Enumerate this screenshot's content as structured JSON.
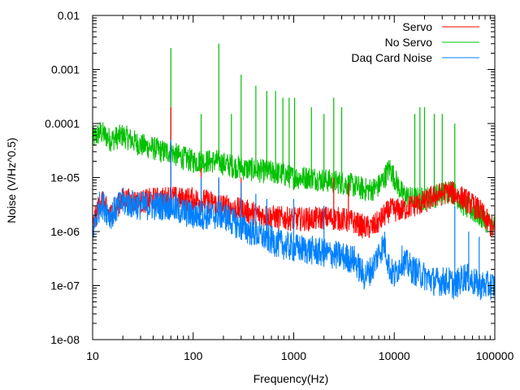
{
  "chart_data": {
    "type": "line",
    "title": "",
    "xlabel": "Frequency(Hz)",
    "ylabel": "Noise (V/Hz^0.5)",
    "xscale": "log",
    "yscale": "log",
    "xlim": [
      10,
      100000
    ],
    "ylim": [
      1e-08,
      0.01
    ],
    "grid": false,
    "legend_position": "top-right",
    "x_tick_labels": [
      "10",
      "100",
      "1000",
      "10000",
      "100000"
    ],
    "x_tick_values": [
      10,
      100,
      1000,
      10000,
      100000
    ],
    "y_tick_labels": [
      "1e-08",
      "1e-07",
      "1e-06",
      "1e-05",
      "0.0001",
      "0.001",
      "0.01"
    ],
    "y_tick_values": [
      1e-08,
      1e-07,
      1e-06,
      1e-05,
      0.0001,
      0.001,
      0.01
    ],
    "series": [
      {
        "name": "No Servo",
        "color": "#00bf00",
        "x": [
          10,
          12,
          15,
          20,
          30,
          40,
          50,
          60,
          70,
          100,
          150,
          180,
          200,
          300,
          500,
          700,
          1000,
          1500,
          2000,
          3000,
          4000,
          5000,
          6000,
          7000,
          8000,
          9000,
          10000,
          12000,
          15000,
          20000,
          25000,
          30000,
          35000,
          40000,
          50000,
          70000,
          100000
        ],
        "y": [
          5e-05,
          7e-05,
          5e-05,
          6e-05,
          4e-05,
          3.5e-05,
          3e-05,
          3e-05,
          2.5e-05,
          2e-05,
          2e-05,
          2e-05,
          1.8e-05,
          1.5e-05,
          1.3e-05,
          1.2e-05,
          1e-05,
          1e-05,
          9e-06,
          8e-06,
          7e-06,
          6e-06,
          6e-06,
          7e-06,
          1e-05,
          1.5e-05,
          1e-05,
          5e-06,
          4e-06,
          4e-06,
          4.5e-06,
          5e-06,
          6e-06,
          5e-06,
          3e-06,
          2e-06,
          1.2e-06
        ],
        "spikes": [
          {
            "x": 60,
            "y": 0.0025
          },
          {
            "x": 120,
            "y": 0.00015
          },
          {
            "x": 180,
            "y": 0.003
          },
          {
            "x": 240,
            "y": 0.00015
          },
          {
            "x": 300,
            "y": 0.0008
          },
          {
            "x": 420,
            "y": 0.0005
          },
          {
            "x": 540,
            "y": 0.0004
          },
          {
            "x": 660,
            "y": 0.0004
          },
          {
            "x": 780,
            "y": 0.0003
          },
          {
            "x": 900,
            "y": 0.0003
          },
          {
            "x": 1020,
            "y": 0.0003
          },
          {
            "x": 1500,
            "y": 0.0002
          },
          {
            "x": 2000,
            "y": 0.00015
          },
          {
            "x": 2500,
            "y": 0.0003
          },
          {
            "x": 3000,
            "y": 0.0002
          },
          {
            "x": 16000,
            "y": 0.00015
          },
          {
            "x": 18000,
            "y": 0.0002
          },
          {
            "x": 20000,
            "y": 0.0002
          },
          {
            "x": 25000,
            "y": 0.00015
          },
          {
            "x": 30000,
            "y": 0.00015
          },
          {
            "x": 40000,
            "y": 0.0001
          }
        ]
      },
      {
        "name": "Servo",
        "color": "#ff0000",
        "x": [
          10,
          12,
          15,
          20,
          30,
          40,
          50,
          60,
          70,
          100,
          150,
          200,
          300,
          500,
          700,
          1000,
          1500,
          2000,
          3000,
          4000,
          5000,
          6000,
          7000,
          8000,
          9000,
          10000,
          12000,
          15000,
          20000,
          25000,
          30000,
          35000,
          40000,
          50000,
          70000,
          100000
        ],
        "y": [
          1.2e-06,
          4e-06,
          2e-06,
          4e-06,
          3.5e-06,
          4e-06,
          4e-06,
          4.5e-06,
          4e-06,
          4e-06,
          3.5e-06,
          3e-06,
          2.5e-06,
          2e-06,
          1.8e-06,
          1.7e-06,
          1.7e-06,
          1.8e-06,
          1.7e-06,
          1.5e-06,
          1.2e-06,
          1.2e-06,
          1.5e-06,
          2e-06,
          2.5e-06,
          2.5e-06,
          2.5e-06,
          3e-06,
          3.5e-06,
          4.5e-06,
          5e-06,
          5.5e-06,
          5e-06,
          4e-06,
          2.5e-06,
          1e-06
        ],
        "spikes": [
          {
            "x": 60,
            "y": 0.0002
          },
          {
            "x": 120,
            "y": 1.5e-05
          },
          {
            "x": 180,
            "y": 1e-05
          },
          {
            "x": 300,
            "y": 1e-05
          },
          {
            "x": 2500,
            "y": 1e-05
          },
          {
            "x": 3500,
            "y": 8e-06
          }
        ]
      },
      {
        "name": "Daq Card Noise",
        "color": "#0080ff",
        "x": [
          10,
          12,
          15,
          20,
          30,
          40,
          50,
          60,
          70,
          100,
          150,
          200,
          300,
          500,
          700,
          1000,
          1500,
          2000,
          3000,
          4000,
          5000,
          6000,
          7000,
          8000,
          9000,
          10000,
          12000,
          15000,
          20000,
          25000,
          30000,
          35000,
          40000,
          50000,
          70000,
          100000
        ],
        "y": [
          1e-06,
          3.5e-06,
          2e-06,
          3.5e-06,
          3e-06,
          3e-06,
          3e-06,
          3e-06,
          2.5e-06,
          2e-06,
          2e-06,
          2e-06,
          1.2e-06,
          8e-07,
          6e-07,
          5e-07,
          4.5e-07,
          4e-07,
          3.5e-07,
          3e-07,
          1.5e-07,
          2e-07,
          4e-07,
          6e-07,
          2e-07,
          1.5e-07,
          3e-07,
          2e-07,
          1.5e-07,
          1.2e-07,
          1.2e-07,
          1.2e-07,
          1e-07,
          1.5e-07,
          1e-07,
          1e-07
        ],
        "spikes": [
          {
            "x": 60,
            "y": 5e-05
          },
          {
            "x": 120,
            "y": 1e-05
          },
          {
            "x": 180,
            "y": 1e-05
          },
          {
            "x": 300,
            "y": 8e-06
          },
          {
            "x": 420,
            "y": 5e-06
          },
          {
            "x": 540,
            "y": 4e-06
          },
          {
            "x": 1000,
            "y": 4e-06
          },
          {
            "x": 2000,
            "y": 3e-06
          },
          {
            "x": 40000,
            "y": 3e-06
          },
          {
            "x": 55000,
            "y": 1e-06
          },
          {
            "x": 70000,
            "y": 8e-07
          }
        ]
      }
    ],
    "legend_order": [
      "Servo",
      "No Servo",
      "Daq Card Noise"
    ]
  }
}
